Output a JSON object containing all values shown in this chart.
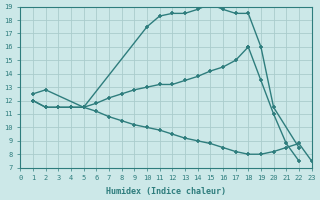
{
  "xlabel": "Humidex (Indice chaleur)",
  "xlim": [
    0,
    23
  ],
  "ylim": [
    7,
    19
  ],
  "xticks": [
    0,
    1,
    2,
    3,
    4,
    5,
    6,
    7,
    8,
    9,
    10,
    11,
    12,
    13,
    14,
    15,
    16,
    17,
    18,
    19,
    20,
    21,
    22,
    23
  ],
  "yticks": [
    7,
    8,
    9,
    10,
    11,
    12,
    13,
    14,
    15,
    16,
    17,
    18,
    19
  ],
  "bg_color": "#cce8e8",
  "grid_color": "#aacccc",
  "line_color": "#2e7d7d",
  "line1_x": [
    1,
    2,
    5,
    10,
    11,
    12,
    13,
    14,
    15,
    16,
    17,
    18,
    19,
    20,
    22
  ],
  "line1_y": [
    12.5,
    12.8,
    11.5,
    17.5,
    18.3,
    18.5,
    18.5,
    18.8,
    19.2,
    18.8,
    18.5,
    18.5,
    16.0,
    11.5,
    8.5
  ],
  "line2_x": [
    1,
    2,
    3,
    4,
    5,
    6,
    7,
    8,
    9,
    10,
    11,
    12,
    13,
    14,
    15,
    16,
    17,
    18
  ],
  "line2_y": [
    12.0,
    11.5,
    11.5,
    11.5,
    11.5,
    11.8,
    12.2,
    12.5,
    12.8,
    13.0,
    13.2,
    13.2,
    13.5,
    13.8,
    14.2,
    14.5,
    15.0,
    16.0
  ],
  "line3_x": [
    1,
    2,
    3,
    4,
    5,
    6,
    7,
    8,
    9,
    10,
    11,
    12,
    13,
    14,
    15,
    16,
    17,
    18,
    19,
    20,
    21,
    22,
    23
  ],
  "line3_y": [
    12.0,
    11.5,
    11.5,
    11.5,
    11.5,
    11.2,
    10.8,
    10.5,
    10.2,
    10.0,
    9.8,
    9.5,
    9.2,
    9.0,
    8.8,
    8.5,
    8.2,
    8.0,
    8.0,
    8.2,
    8.5,
    8.8,
    7.5
  ],
  "line4_x": [
    18,
    19,
    20,
    21,
    22
  ],
  "line4_y": [
    16.0,
    13.5,
    11.0,
    8.8,
    7.5
  ]
}
